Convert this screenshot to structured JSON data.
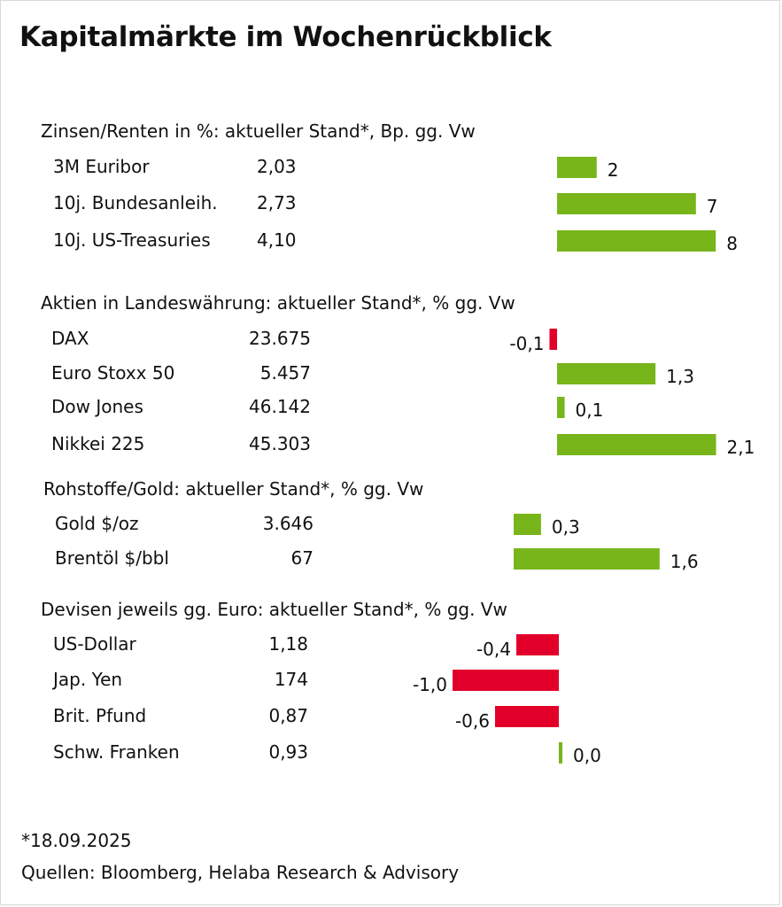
{
  "title": "Kapitalmärkte im Wochenrückblick",
  "footer": {
    "date_note": "*18.09.2025",
    "sources": "Quellen: Bloomberg, Helaba Research & Advisory"
  },
  "colors": {
    "positive": "#78b51a",
    "negative": "#e2002a"
  },
  "chart_data": [
    {
      "type": "bar",
      "title": "Zinsen/Renten in %: aktueller Stand*, Bp. gg. Vw",
      "categories": [
        "3M Euribor",
        "10j. Bundesanleih.",
        "10j. US-Treasuries"
      ],
      "levels": [
        "2,03",
        "2,73",
        "4,10"
      ],
      "values": [
        2,
        7,
        8
      ],
      "value_labels": [
        "2",
        "7",
        "8"
      ]
    },
    {
      "type": "bar",
      "title": "Aktien in Landeswährung: aktueller Stand*, % gg. Vw",
      "categories": [
        "DAX",
        "Euro Stoxx 50",
        "Dow Jones",
        "Nikkei 225"
      ],
      "levels": [
        "23.675",
        "5.457",
        "46.142",
        "45.303"
      ],
      "values": [
        -0.1,
        1.3,
        0.1,
        2.1
      ],
      "value_labels": [
        "-0,1",
        "1,3",
        "0,1",
        "2,1"
      ]
    },
    {
      "type": "bar",
      "title": "Rohstoffe/Gold: aktueller Stand*, % gg. Vw",
      "categories": [
        "Gold $/oz",
        "Brentöl $/bbl"
      ],
      "levels": [
        "3.646",
        "67"
      ],
      "values": [
        0.3,
        1.6
      ],
      "value_labels": [
        "0,3",
        "1,6"
      ]
    },
    {
      "type": "bar",
      "title": "Devisen jeweils gg. Euro: aktueller Stand*, % gg. Vw",
      "categories": [
        "US-Dollar",
        "Jap. Yen",
        "Brit. Pfund",
        "Schw. Franken"
      ],
      "levels": [
        "1,18",
        "174",
        "0,87",
        "0,93"
      ],
      "values": [
        -0.4,
        -1.0,
        -0.6,
        0.0
      ],
      "value_labels": [
        "-0,4",
        "-1,0",
        "-0,6",
        "0,0"
      ]
    }
  ]
}
